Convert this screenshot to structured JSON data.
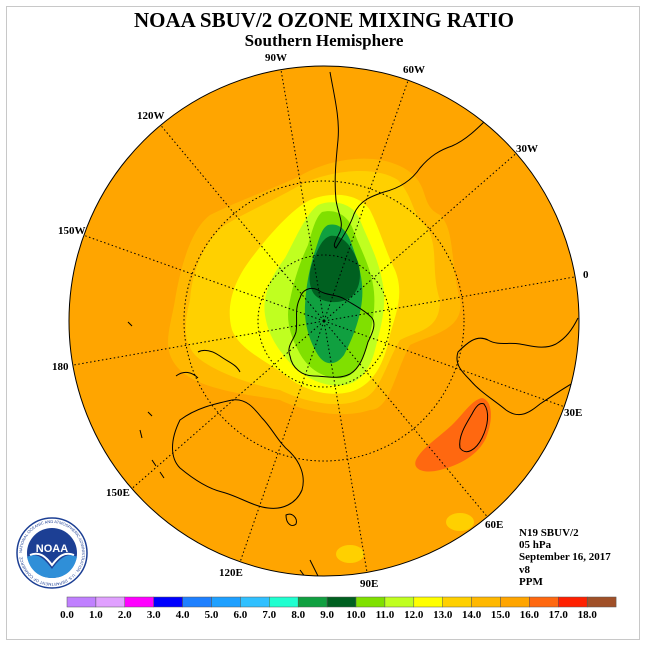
{
  "header": {
    "title": "NOAA SBUV/2 OZONE MIXING RATIO",
    "subtitle": "Southern Hemisphere"
  },
  "map": {
    "projection": "south-polar-stereographic",
    "longitude_labels": [
      "90W",
      "60W",
      "30W",
      "0",
      "30E",
      "60E",
      "90E",
      "120E",
      "150E",
      "180",
      "150W",
      "120W"
    ],
    "colors": {
      "background_field": "#ffa500",
      "ocean_edge": "#ffa500",
      "land_outline": "#000000",
      "grid": "#000000"
    }
  },
  "info": {
    "lines": [
      "N19 SBUV/2",
      "05 hPa",
      "September 16, 2017",
      "v8",
      "PPM"
    ]
  },
  "logo": {
    "text": "NOAA",
    "ring_text": "NATIONAL OCEANIC AND ATMOSPHERIC ADMINISTRATION · U.S. DEPARTMENT OF COMMERCE"
  },
  "colorbar": {
    "ticks": [
      "0.0",
      "1.0",
      "2.0",
      "3.0",
      "4.0",
      "5.0",
      "6.0",
      "7.0",
      "8.0",
      "9.0",
      "10.0",
      "11.0",
      "12.0",
      "13.0",
      "14.0",
      "15.0",
      "16.0",
      "17.0",
      "18.0"
    ],
    "colors": [
      "#c080ff",
      "#e0a0ff",
      "#ff00ff",
      "#0000ff",
      "#1e80ff",
      "#1ea0ff",
      "#30c0ff",
      "#20ffd0",
      "#10a040",
      "#006020",
      "#80e000",
      "#c0ff20",
      "#ffff00",
      "#ffd000",
      "#ffb800",
      "#ffa500",
      "#ff6810",
      "#ff2000",
      "#a05028"
    ]
  }
}
